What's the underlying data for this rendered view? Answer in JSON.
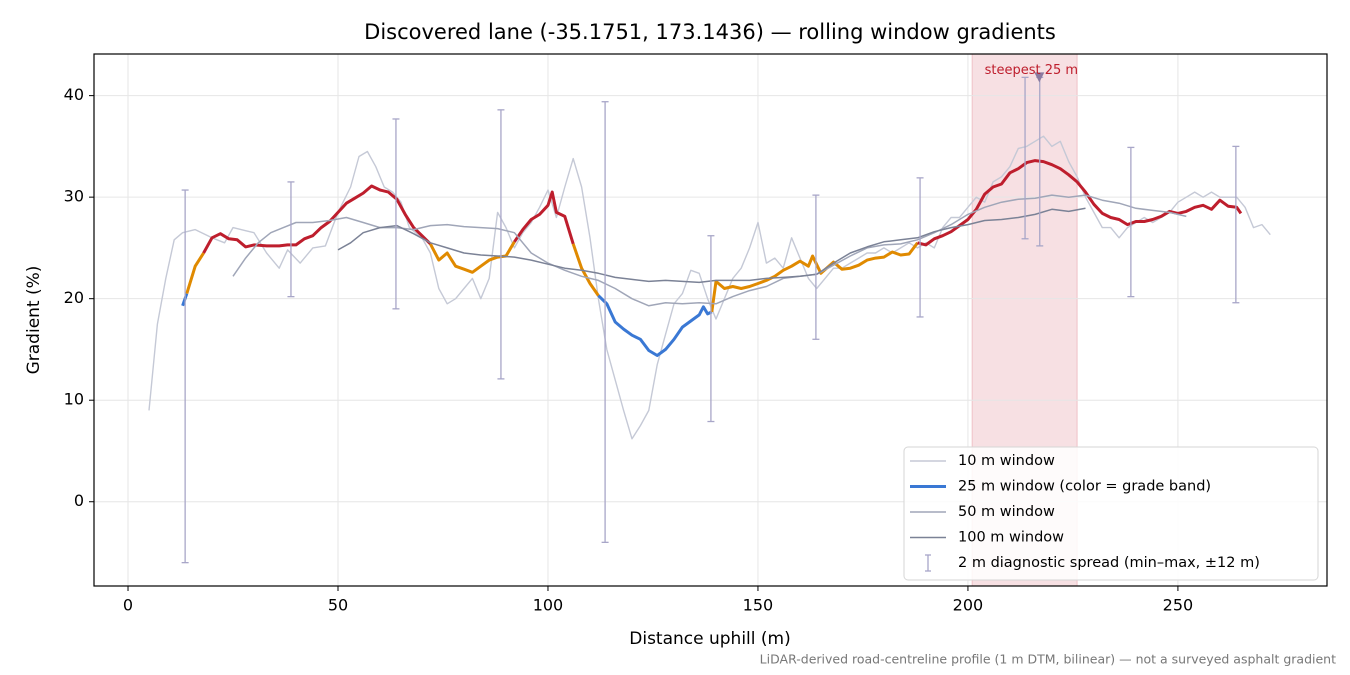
{
  "chart_data": {
    "type": "line",
    "title": "Discovered lane (-35.1751, 173.1436) — rolling window gradients",
    "xlabel": "Distance uphill (m)",
    "ylabel": "Gradient (%)",
    "footnote": "LiDAR-derived road-centreline profile (1 m DTM, bilinear) — not a surveyed asphalt gradient",
    "xlim": [
      -8.1,
      285.5
    ],
    "ylim": [
      -8.3,
      44.1
    ],
    "xticks": [
      0,
      50,
      100,
      150,
      200,
      250
    ],
    "yticks": [
      0,
      10,
      20,
      30,
      40
    ],
    "grid": true,
    "legend": "lower right",
    "highlight": [
      201,
      226
    ],
    "highlight_color": "#e8a5ae",
    "annotation": {
      "text": "steepest 25 m",
      "x": 217,
      "y": 41.8,
      "color": "#be1e2d"
    },
    "band_edges": [
      20,
      25
    ],
    "band_colors": [
      "#3a78d4",
      "#e08a00",
      "#be1e2d"
    ],
    "series": [
      {
        "name": "10 m window",
        "color": "#c5c9d6",
        "x": [
          5,
          7,
          9,
          11,
          13,
          16,
          20,
          23,
          25,
          28,
          30,
          33,
          36,
          38,
          41,
          44,
          47,
          50,
          53,
          55,
          57,
          59,
          61,
          63,
          65,
          67,
          70,
          72,
          74,
          76,
          78,
          80,
          82,
          84,
          86,
          88,
          90,
          92,
          94,
          96,
          98,
          100,
          102,
          104,
          106,
          108,
          110,
          112,
          114,
          116,
          118,
          120,
          122,
          124,
          126,
          128,
          130,
          132,
          134,
          136,
          138,
          140,
          142,
          144,
          146,
          148,
          150,
          152,
          154,
          156,
          158,
          160,
          162,
          164,
          166,
          168,
          170,
          172,
          174,
          176,
          178,
          180,
          182,
          184,
          186,
          188,
          190,
          192,
          194,
          196,
          198,
          200,
          202,
          204,
          206,
          208,
          210,
          212,
          214,
          216,
          218,
          220,
          222,
          224,
          226,
          228,
          230,
          232,
          234,
          236,
          238,
          240,
          242,
          244,
          246,
          248,
          250,
          252,
          254,
          256,
          258,
          260,
          262,
          264,
          266,
          268,
          270,
          272
        ],
        "values": [
          9,
          17.5,
          22,
          25.8,
          26.5,
          26.8,
          26,
          25.5,
          27,
          26.7,
          26.5,
          24.5,
          23,
          24.8,
          23.5,
          25,
          25.2,
          28.5,
          31,
          34,
          34.5,
          33,
          31,
          30.5,
          29.5,
          27,
          26,
          24.5,
          21,
          19.5,
          20,
          21,
          22,
          20,
          22,
          28.5,
          27,
          25,
          26.5,
          27.5,
          29,
          30.7,
          28,
          31,
          33.8,
          31,
          26,
          20,
          15,
          12,
          9,
          6.2,
          7.5,
          9,
          13.5,
          16.5,
          19.5,
          20.5,
          22.8,
          22.5,
          20,
          18,
          20,
          22,
          23,
          25,
          27.5,
          23.5,
          24,
          23,
          26,
          24,
          22,
          21,
          22,
          23,
          23,
          23.5,
          24,
          24.5,
          24.5,
          25,
          24.5,
          25,
          25.5,
          25,
          25.5,
          25,
          27,
          28,
          28,
          29,
          30,
          29.5,
          31.5,
          32,
          33,
          34.8,
          35,
          35.5,
          36,
          35,
          35.5,
          33.5,
          32,
          30,
          28.5,
          27,
          27,
          26,
          27,
          27.5,
          28,
          27.5,
          28,
          28.5,
          29.5,
          30,
          30.5,
          30,
          30.5,
          30,
          30,
          30,
          29,
          27,
          27.3,
          26.3
        ]
      },
      {
        "name": "25 m window (color = grade band)",
        "color": "#3a78d4",
        "banded": true,
        "x": [
          13,
          14,
          16,
          18,
          20,
          22,
          24,
          26,
          28,
          30,
          33,
          36,
          38,
          40,
          42,
          44,
          46,
          48,
          50,
          52,
          54,
          56,
          58,
          60,
          62,
          64,
          66,
          68,
          70,
          72,
          74,
          76,
          78,
          80,
          82,
          84,
          86,
          88,
          90,
          92,
          94,
          96,
          98,
          100,
          101,
          102,
          104,
          106,
          108,
          110,
          112,
          114,
          116,
          118,
          120,
          122,
          124,
          126,
          128,
          130,
          132,
          134,
          136,
          137,
          138,
          139,
          140,
          142,
          144,
          146,
          148,
          150,
          152,
          154,
          156,
          158,
          160,
          162,
          163,
          165,
          168,
          170,
          172,
          174,
          176,
          178,
          180,
          182,
          184,
          186,
          188,
          190,
          192,
          194,
          196,
          198,
          200,
          202,
          204,
          206,
          208,
          210,
          212,
          214,
          216,
          218,
          220,
          222,
          224,
          226,
          228,
          230,
          232,
          234,
          236,
          238,
          240,
          242,
          244,
          246,
          248,
          250,
          252,
          254,
          256,
          258,
          260,
          262,
          264,
          265
        ],
        "values": [
          19.3,
          20.5,
          23.2,
          24.5,
          26,
          26.4,
          25.9,
          25.8,
          25.1,
          25.3,
          25.2,
          25.2,
          25.3,
          25.3,
          25.9,
          26.2,
          27,
          27.6,
          28.5,
          29.4,
          29.9,
          30.4,
          31.1,
          30.7,
          30.5,
          29.8,
          28.3,
          27,
          26.2,
          25.4,
          23.8,
          24.5,
          23.2,
          22.9,
          22.6,
          23.2,
          23.8,
          24.1,
          24.2,
          25.6,
          26.8,
          27.8,
          28.3,
          29.2,
          30.5,
          28.5,
          28.1,
          25.4,
          23,
          21.5,
          20.3,
          19.5,
          17.7,
          17,
          16.4,
          16,
          14.9,
          14.4,
          15,
          16,
          17.2,
          17.8,
          18.4,
          19.2,
          18.5,
          18.7,
          21.7,
          21,
          21.2,
          21,
          21.2,
          21.5,
          21.8,
          22.2,
          22.8,
          23.2,
          23.7,
          23.2,
          24.2,
          22.5,
          23.6,
          22.9,
          23,
          23.3,
          23.8,
          24,
          24.1,
          24.6,
          24.3,
          24.4,
          25.5,
          25.3,
          25.9,
          26.2,
          26.6,
          27.2,
          27.8,
          28.8,
          30.3,
          31,
          31.3,
          32.4,
          32.8,
          33.4,
          33.6,
          33.5,
          33.2,
          32.8,
          32.2,
          31.5,
          30.5,
          29.3,
          28.4,
          28,
          27.8,
          27.3,
          27.6,
          27.6,
          27.8,
          28.1,
          28.6,
          28.4,
          28.6,
          29,
          29.2,
          28.8,
          29.7,
          29.1,
          29,
          28.4
        ]
      },
      {
        "name": "50 m window",
        "color": "#a0a6b8",
        "x": [
          25,
          28,
          31,
          34,
          37,
          40,
          44,
          48,
          52,
          56,
          60,
          64,
          68,
          72,
          76,
          80,
          84,
          88,
          92,
          96,
          100,
          104,
          108,
          112,
          116,
          120,
          124,
          128,
          132,
          136,
          140,
          144,
          148,
          152,
          156,
          160,
          164,
          168,
          172,
          176,
          180,
          184,
          188,
          192,
          196,
          200,
          204,
          208,
          212,
          216,
          220,
          224,
          228,
          232,
          236,
          240,
          244,
          248,
          252
        ],
        "values": [
          22.2,
          24,
          25.5,
          26.5,
          27,
          27.5,
          27.5,
          27.7,
          28,
          27.5,
          27,
          27,
          26.8,
          27.2,
          27.3,
          27.1,
          27,
          26.9,
          26.5,
          24.5,
          23.5,
          22.8,
          22.2,
          21.8,
          21,
          20,
          19.3,
          19.6,
          19.5,
          19.6,
          19.5,
          20.2,
          20.8,
          21.2,
          22,
          22.2,
          22.4,
          23.3,
          24.2,
          25,
          25.3,
          25.4,
          25.8,
          26.5,
          27.3,
          28.3,
          29,
          29.5,
          29.8,
          29.9,
          30.2,
          30,
          30.2,
          29.7,
          29.4,
          28.9,
          28.7,
          28.5,
          28.1
        ]
      },
      {
        "name": "100 m window",
        "color": "#7b8296",
        "x": [
          50,
          53,
          56,
          60,
          64,
          68,
          72,
          76,
          80,
          84,
          88,
          92,
          96,
          100,
          104,
          108,
          112,
          116,
          120,
          124,
          128,
          132,
          136,
          140,
          144,
          148,
          152,
          156,
          160,
          164,
          168,
          172,
          176,
          180,
          184,
          188,
          192,
          196,
          200,
          204,
          208,
          212,
          216,
          220,
          224,
          228
        ],
        "values": [
          24.8,
          25.5,
          26.5,
          27,
          27.2,
          26.4,
          25.5,
          25,
          24.5,
          24.3,
          24.2,
          24.1,
          23.8,
          23.4,
          23,
          22.8,
          22.5,
          22.1,
          21.9,
          21.7,
          21.8,
          21.7,
          21.6,
          21.8,
          21.8,
          21.8,
          22,
          22.1,
          22.2,
          22.4,
          23.5,
          24.5,
          25.1,
          25.6,
          25.8,
          26,
          26.6,
          27,
          27.3,
          27.7,
          27.8,
          28,
          28.3,
          28.8,
          28.6,
          28.9
        ]
      },
      {
        "name": "2 m diagnostic spread (min–max, ±12 m)",
        "color": "#a8a6c8",
        "x": [
          13.6,
          38.8,
          63.8,
          88.8,
          113.6,
          138.8,
          163.8,
          188.6,
          213.6,
          217.1,
          238.8,
          263.8
        ],
        "min": [
          -6.0,
          20.2,
          19.0,
          12.1,
          -4.0,
          7.9,
          16.0,
          18.2,
          25.9,
          25.2,
          20.2,
          19.6
        ],
        "max": [
          30.7,
          31.5,
          37.7,
          38.6,
          39.4,
          26.2,
          30.2,
          31.9,
          41.8,
          41.8,
          34.9,
          35.0
        ]
      }
    ]
  }
}
